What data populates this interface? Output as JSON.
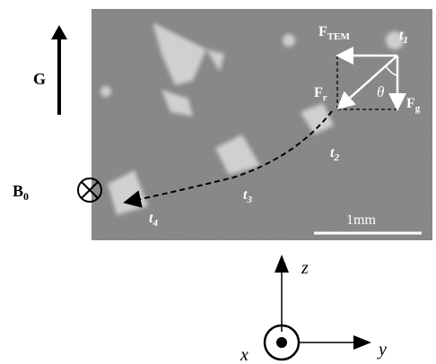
{
  "figure": {
    "gravity_label": "G",
    "field_label": {
      "main": "B",
      "sub": "0"
    },
    "forces": {
      "tem": {
        "main": "F",
        "sub": "TEM"
      },
      "resultant": {
        "main": "F",
        "sub": "r"
      },
      "gravity": {
        "main": "F",
        "sub": "g"
      },
      "angle": "θ"
    },
    "times": {
      "t1": {
        "main": "t",
        "sub": "1"
      },
      "t2": {
        "main": "t",
        "sub": "2"
      },
      "t3": {
        "main": "t",
        "sub": "3"
      },
      "t4": {
        "main": "t",
        "sub": "4"
      }
    },
    "scale_bar": "1mm",
    "axes": {
      "z": "z",
      "x": "x",
      "y": "y"
    }
  }
}
